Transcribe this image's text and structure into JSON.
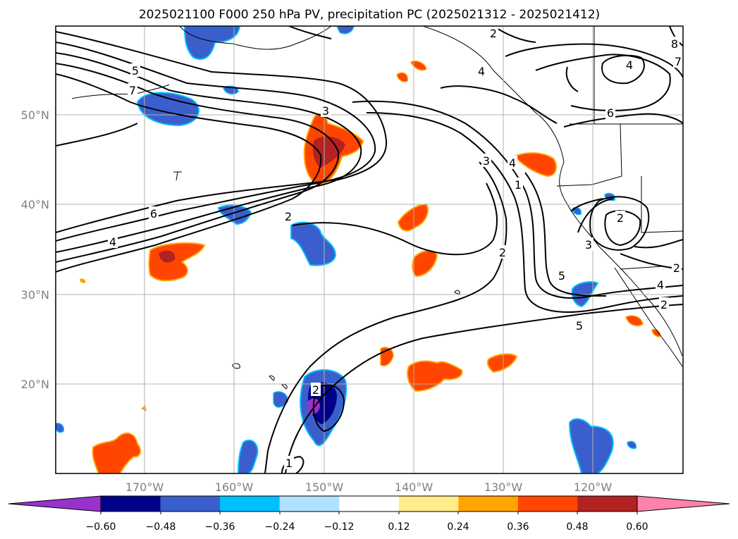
{
  "title": "2025021100 F000 250 hPa PV, precipitation PC (2025021312 - 2025021412)",
  "map": {
    "lon_labels": [
      "170°W",
      "160°W",
      "150°W",
      "140°W",
      "130°W",
      "120°W"
    ],
    "lat_labels": [
      "50°N",
      "40°N",
      "30°N",
      "20°N"
    ],
    "grid_color": "#b0b0b0",
    "contour_color": "#000000",
    "contour_labels": [
      "5",
      "7",
      "3",
      "6",
      "4",
      "2",
      "3",
      "4",
      "1",
      "2",
      "4",
      "6",
      "2",
      "3",
      "5",
      "2",
      "4",
      "2",
      "5",
      "1",
      "2",
      "2",
      "8",
      "7",
      "4"
    ]
  },
  "colorbar": {
    "ticks": [
      "−0.60",
      "−0.48",
      "−0.36",
      "−0.24",
      "−0.12",
      "0.12",
      "0.24",
      "0.36",
      "0.48",
      "0.60"
    ],
    "colors": [
      "#9932cc",
      "#00008b",
      "#3a5fcd",
      "#00bfff",
      "#b0e2ff",
      "#ffffff",
      "#ffec8b",
      "#ffa500",
      "#ff4500",
      "#b22222",
      "#ff82ab"
    ]
  }
}
